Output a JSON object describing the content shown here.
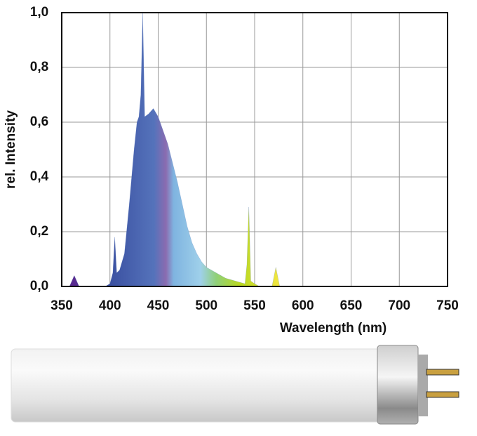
{
  "chart_data": {
    "type": "area",
    "xlabel": "Wavelength (nm)",
    "ylabel": "rel. Intensity",
    "x": [
      358,
      363,
      368,
      380,
      395,
      400,
      403,
      405,
      407,
      410,
      415,
      420,
      425,
      428,
      430,
      432,
      434,
      436,
      440,
      445,
      450,
      455,
      460,
      465,
      470,
      475,
      480,
      485,
      490,
      495,
      500,
      510,
      520,
      530,
      540,
      542,
      544,
      546,
      550,
      555,
      560,
      568,
      572,
      576
    ],
    "series": [
      {
        "name": "spectrum",
        "color": "#5577bb",
        "values": [
          0,
          0.04,
          0,
          null,
          0,
          0.01,
          0.05,
          0.18,
          0.05,
          0.06,
          0.12,
          0.3,
          0.5,
          0.6,
          0.62,
          0.7,
          1.0,
          0.62,
          0.63,
          0.65,
          0.62,
          0.57,
          0.52,
          0.45,
          0.38,
          0.3,
          0.22,
          0.16,
          0.12,
          0.09,
          0.07,
          0.05,
          0.03,
          0.02,
          0.01,
          0.08,
          0.29,
          0.02,
          0.01,
          0,
          null,
          0,
          0.07,
          0
        ]
      }
    ],
    "xlim": [
      350,
      750
    ],
    "xticks": [
      350,
      400,
      450,
      500,
      550,
      600,
      650,
      700,
      750
    ],
    "ylim": [
      0,
      1
    ],
    "yticks": [
      {
        "value": 0,
        "label": "0,0"
      },
      {
        "value": 0.2,
        "label": "0,2"
      },
      {
        "value": 0.4,
        "label": "0,4"
      },
      {
        "value": 0.6,
        "label": "0,6"
      },
      {
        "value": 0.8,
        "label": "0,8"
      },
      {
        "value": 1,
        "label": "1,0"
      }
    ],
    "grid": true
  }
}
